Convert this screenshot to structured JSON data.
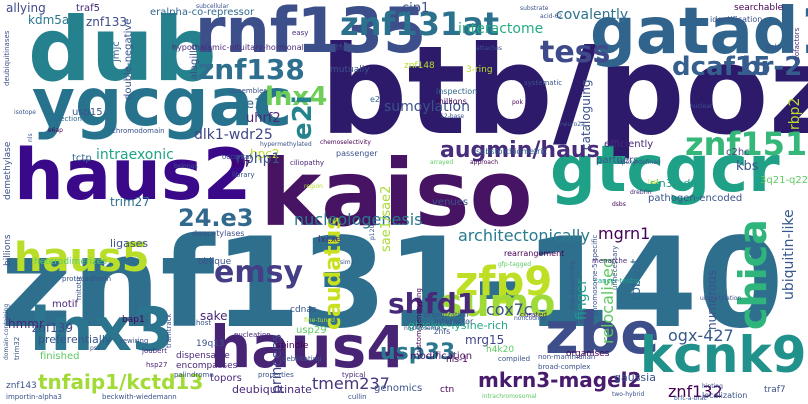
{
  "words": [
    {
      "text": "btb/poz",
      "color": "#2d1a6b"
    },
    {
      "text": "znf131-140",
      "color": "#2f6f8e"
    },
    {
      "text": "kaiso",
      "color": "#471363"
    },
    {
      "text": "dub",
      "color": "#26818e"
    },
    {
      "text": "rnf135",
      "color": "#3c4f8a"
    },
    {
      "text": "gatad1",
      "color": "#30648d"
    },
    {
      "text": "ygcgac",
      "color": "#27738e"
    },
    {
      "text": "haus2",
      "color": "#3a098a"
    },
    {
      "text": "gtcgcr",
      "color": "#1fa187"
    },
    {
      "text": "haus4",
      "color": "#482475"
    },
    {
      "text": "lnx3",
      "color": "#2b758e"
    },
    {
      "text": "zbe",
      "color": "#3d4e8a"
    },
    {
      "text": "kcnk9",
      "color": "#21918c"
    },
    {
      "text": "znf131at",
      "color": "#2c728e"
    },
    {
      "text": "zfp9",
      "color": "#bddf26"
    },
    {
      "text": "haus5",
      "color": "#b8de29"
    },
    {
      "text": "znf138",
      "color": "#2e6e8e"
    },
    {
      "text": "chica",
      "color": "#2fb47c"
    },
    {
      "text": "sumo",
      "color": "#a0da39"
    },
    {
      "text": "shfd1",
      "color": "#482878"
    },
    {
      "text": "emsy",
      "color": "#433e85"
    },
    {
      "text": "caudatus",
      "color": "#c8e020"
    },
    {
      "text": "znf151",
      "color": "#35b779"
    },
    {
      "text": "tess",
      "color": "#3e4a89"
    },
    {
      "text": "dcaf15",
      "color": "#355f8d"
    },
    {
      "text": "br-2",
      "color": "#365c8d"
    },
    {
      "text": "augmin/haus",
      "color": "#472d7b"
    },
    {
      "text": "lnx4",
      "color": "#6ece58"
    },
    {
      "text": "24.e3",
      "color": "#31688e"
    },
    {
      "text": "e2i",
      "color": "#25838e"
    },
    {
      "text": "usp33",
      "color": "#2a788e"
    },
    {
      "text": "tnfaip1/kctd13",
      "color": "#a2da37"
    },
    {
      "text": "mkrn3-magel2",
      "color": "#481b6d"
    },
    {
      "text": "znf132",
      "color": "#440154"
    },
    {
      "text": "tmem237",
      "color": "#46337e"
    },
    {
      "text": "ogx-427",
      "color": "#38598c"
    },
    {
      "text": "cox7c",
      "color": "#3b528b"
    },
    {
      "text": "nucleologenesis",
      "color": "#2a788e"
    },
    {
      "text": "architectonically",
      "color": "#297b8e"
    },
    {
      "text": "mgrn1",
      "color": "#440154"
    },
    {
      "text": "sumoylation",
      "color": "#3b528b"
    },
    {
      "text": "dlk1-wdr25",
      "color": "#3f4788"
    },
    {
      "text": "covalently",
      "color": "#2c728e"
    },
    {
      "text": "interactome",
      "color": "#25ab82"
    },
    {
      "text": "cip1",
      "color": "#3b528b"
    },
    {
      "text": "intraexonic",
      "color": "#20a386"
    },
    {
      "text": "uhrf2",
      "color": "#482979"
    },
    {
      "text": "hpc2",
      "color": "#bddf26"
    },
    {
      "text": "znf139",
      "color": "#3e4a89"
    },
    {
      "text": "princeps",
      "color": "#414487"
    },
    {
      "text": "finger",
      "color": "#1f9a8a"
    },
    {
      "text": "mrg15",
      "color": "#414487"
    },
    {
      "text": "relocalised",
      "color": "#5ec962"
    },
    {
      "text": "kdm5a",
      "color": "#2a788e"
    },
    {
      "text": "znf133",
      "color": "#3e4c8a"
    },
    {
      "text": "allying",
      "color": "#3e4a89"
    },
    {
      "text": "e1",
      "color": "#2f6c8e"
    },
    {
      "text": "nphp1",
      "color": "#3b528b"
    },
    {
      "text": "trim27",
      "color": "#2d708e"
    },
    {
      "text": "sake",
      "color": "#482878"
    },
    {
      "text": "sin3/hdac",
      "color": "#1f9e89"
    },
    {
      "text": "pathogen-encoded",
      "color": "#3b528b"
    },
    {
      "text": "kbs",
      "color": "#3b528b"
    },
    {
      "text": "c2hc",
      "color": "#414487"
    },
    {
      "text": "rbp2",
      "color": "#b5de2b"
    },
    {
      "text": "ubiquitin-like",
      "color": "#38598c"
    },
    {
      "text": "hmmr",
      "color": "#482576"
    },
    {
      "text": "sae1/sae2",
      "color": "#a8db34"
    },
    {
      "text": "preferentially",
      "color": "#39568c"
    },
    {
      "text": "robust",
      "color": "#31688e"
    },
    {
      "text": "numerous",
      "color": "#3b528b"
    },
    {
      "text": "glycine-lysine-rich",
      "color": "#22a884"
    },
    {
      "text": "usp29",
      "color": "#5ec962"
    },
    {
      "text": "deubiquitinate",
      "color": "#482878"
    },
    {
      "text": "genomics",
      "color": "#3b528b"
    },
    {
      "text": "topors",
      "color": "#482878"
    },
    {
      "text": "modification",
      "color": "#471164"
    },
    {
      "text": "gaussia",
      "color": "#3b528b"
    },
    {
      "text": "ligases",
      "color": "#3b528b"
    },
    {
      "text": "kif7",
      "color": "#440154"
    },
    {
      "text": "tctp",
      "color": "#31688e"
    },
    {
      "text": "usp15",
      "color": "#3b528b"
    },
    {
      "text": "jmjc",
      "color": "#31688e"
    },
    {
      "text": "traf5",
      "color": "#482878"
    },
    {
      "text": "eralpha-co-repressor",
      "color": "#31688e"
    },
    {
      "text": "double-negative",
      "color": "#3b528b"
    },
    {
      "text": "hypothalamic-pituitary-hormonal",
      "color": "#482878"
    },
    {
      "text": "straightforward",
      "color": "#3b528b"
    },
    {
      "text": "inspection",
      "color": "#31688e"
    },
    {
      "text": "millions",
      "color": "#440154"
    },
    {
      "text": "cataloguing",
      "color": "#3b528b"
    },
    {
      "text": "efficiently",
      "color": "#482878"
    },
    {
      "text": "partners",
      "color": "#3b528b"
    },
    {
      "text": "venues",
      "color": "#3b528b"
    },
    {
      "text": "rearrangement",
      "color": "#440154"
    },
    {
      "text": "substoichiometric",
      "color": "#31688e"
    },
    {
      "text": "passenger",
      "color": "#3b528b"
    },
    {
      "text": "lxcxe",
      "color": "#482878"
    },
    {
      "text": "oblique",
      "color": "#3b528b"
    },
    {
      "text": "deacetylases",
      "color": "#3b528b"
    },
    {
      "text": "heterodimerizes",
      "color": "#5ec962"
    },
    {
      "text": "billions",
      "color": "#3b528b"
    },
    {
      "text": "demethylase",
      "color": "#3b528b"
    },
    {
      "text": "motif",
      "color": "#482878"
    },
    {
      "text": "finished",
      "color": "#5ec962"
    },
    {
      "text": "bap1",
      "color": "#440154"
    },
    {
      "text": "19q13",
      "color": "#3b528b"
    },
    {
      "text": "spindle",
      "color": "#440154"
    },
    {
      "text": "cdnas",
      "color": "#3b528b"
    },
    {
      "text": "interactor",
      "color": "#3b528b"
    },
    {
      "text": "znfs",
      "color": "#3b528b"
    },
    {
      "text": "nls-1",
      "color": "#440154"
    },
    {
      "text": "awry",
      "color": "#3b528b"
    },
    {
      "text": "organises",
      "color": "#440154"
    },
    {
      "text": "znf143",
      "color": "#3b528b"
    },
    {
      "text": "importin-alpha3",
      "color": "#3b528b"
    },
    {
      "text": "beckwith-wiedemann",
      "color": "#3b528b"
    },
    {
      "text": "ctn",
      "color": "#440154"
    },
    {
      "text": "traf7",
      "color": "#3b528b"
    },
    {
      "text": "localization",
      "color": "#3b528b"
    },
    {
      "text": "dispensable",
      "color": "#482878"
    },
    {
      "text": "encompasses",
      "color": "#482878"
    },
    {
      "text": "cullin",
      "color": "#3b528b"
    },
    {
      "text": "compiled",
      "color": "#3b528b"
    },
    {
      "text": "h4k20",
      "color": "#5ec962"
    },
    {
      "text": "mutually",
      "color": "#3b528b"
    },
    {
      "text": "znf148",
      "color": "#b5de2b"
    },
    {
      "text": "3-ring",
      "color": "#b5de2b"
    },
    {
      "text": "searchable",
      "color": "#440154"
    },
    {
      "text": "identification",
      "color": "#3b528b"
    },
    {
      "text": "substrate",
      "color": "#3b528b"
    },
    {
      "text": "acid-62",
      "color": "#3b528b"
    },
    {
      "text": "systematic",
      "color": "#3b528b"
    },
    {
      "text": "alagille",
      "color": "#3b528b"
    },
    {
      "text": "easy",
      "color": "#482878"
    },
    {
      "text": "assembles",
      "color": "#3b528b"
    },
    {
      "text": "ejection",
      "color": "#31688e"
    },
    {
      "text": "chromodomain",
      "color": "#3b528b"
    },
    {
      "text": "ciliopathy",
      "color": "#482878"
    },
    {
      "text": "cancer-testis",
      "color": "#1f9e89"
    },
    {
      "text": "mitotic",
      "color": "#3b528b"
    },
    {
      "text": "protocadherin",
      "color": "#3b528b"
    },
    {
      "text": "nucleation",
      "color": "#482878"
    },
    {
      "text": "host",
      "color": "#3b528b"
    },
    {
      "text": "properties",
      "color": "#3b528b"
    },
    {
      "text": "typical",
      "color": "#482878"
    },
    {
      "text": "palindrome",
      "color": "#3b528b"
    },
    {
      "text": "intrachromosomal",
      "color": "#5ec962"
    },
    {
      "text": "two-hybrid",
      "color": "#3b528b"
    },
    {
      "text": "hinting",
      "color": "#3b528b"
    },
    {
      "text": "custom-genotyping",
      "color": "#440154"
    },
    {
      "text": "broad-complex",
      "color": "#3b528b"
    },
    {
      "text": "non-mammalian",
      "color": "#3b528b"
    },
    {
      "text": "prioritization",
      "color": "#3b528b"
    },
    {
      "text": "curated",
      "color": "#482878"
    },
    {
      "text": "chromosome-5-specific",
      "color": "#3b528b"
    },
    {
      "text": "unnecessary",
      "color": "#3b528b"
    },
    {
      "text": "menarche",
      "color": "#482878"
    },
    {
      "text": "tramtrack",
      "color": "#3b528b"
    },
    {
      "text": "joubert",
      "color": "#482878"
    },
    {
      "text": "hsp27",
      "color": "#482878"
    },
    {
      "text": "rewiring",
      "color": "#3b528b"
    },
    {
      "text": "debilitating",
      "color": "#3b528b"
    },
    {
      "text": "library",
      "color": "#3b528b"
    },
    {
      "text": "occipital",
      "color": "#3b528b"
    },
    {
      "text": "deubiquitinases",
      "color": "#3b528b"
    },
    {
      "text": "isotope",
      "color": "#3b528b"
    },
    {
      "text": "cofactors",
      "color": "#482878"
    },
    {
      "text": "hela",
      "color": "#3b528b"
    },
    {
      "text": "neuro2a",
      "color": "#3b528b"
    },
    {
      "text": "pok",
      "color": "#440154"
    },
    {
      "text": "12-base",
      "color": "#3b528b"
    },
    {
      "text": "attaches",
      "color": "#3b528b"
    },
    {
      "text": "approach",
      "color": "#440154"
    },
    {
      "text": "arrayed",
      "color": "#5ec962"
    },
    {
      "text": "gfp-tagged",
      "color": "#5ec962"
    },
    {
      "text": "brfc-a-brac",
      "color": "#3b528b"
    },
    {
      "text": "nucleosome",
      "color": "#3b528b"
    },
    {
      "text": "belongs",
      "color": "#3b528b"
    },
    {
      "text": "chemoselectivity",
      "color": "#440154"
    },
    {
      "text": "epoxy-defined",
      "color": "#3b528b"
    },
    {
      "text": "nuclear",
      "color": "#3b528b"
    },
    {
      "text": "subcellular",
      "color": "#3b528b"
    },
    {
      "text": "domain-containing",
      "color": "#3b528b"
    },
    {
      "text": "trim32",
      "color": "#3b528b"
    },
    {
      "text": "e6ap",
      "color": "#440154"
    },
    {
      "text": "nls",
      "color": "#3b528b"
    },
    {
      "text": "3q21-q22",
      "color": "#5ec962"
    },
    {
      "text": "e2",
      "color": "#31688e"
    },
    {
      "text": "fine-tuned",
      "color": "#b5de2b"
    },
    {
      "text": "noncoding",
      "color": "#3b528b"
    },
    {
      "text": "chip-sequencing",
      "color": "#3b528b"
    },
    {
      "text": "dsbs",
      "color": "#440154"
    },
    {
      "text": "ps2",
      "color": "#3b528b"
    },
    {
      "text": "sim1",
      "color": "#3b528b"
    },
    {
      "text": "last",
      "color": "#b5de2b"
    },
    {
      "text": "drebrin",
      "color": "#482878"
    },
    {
      "text": "p120",
      "color": "#3b528b"
    },
    {
      "text": "region",
      "color": "#b5de2b"
    },
    {
      "text": "ubiquitylation",
      "color": "#3b528b"
    },
    {
      "text": "hypermethylated",
      "color": "#3b528b"
    }
  ]
}
